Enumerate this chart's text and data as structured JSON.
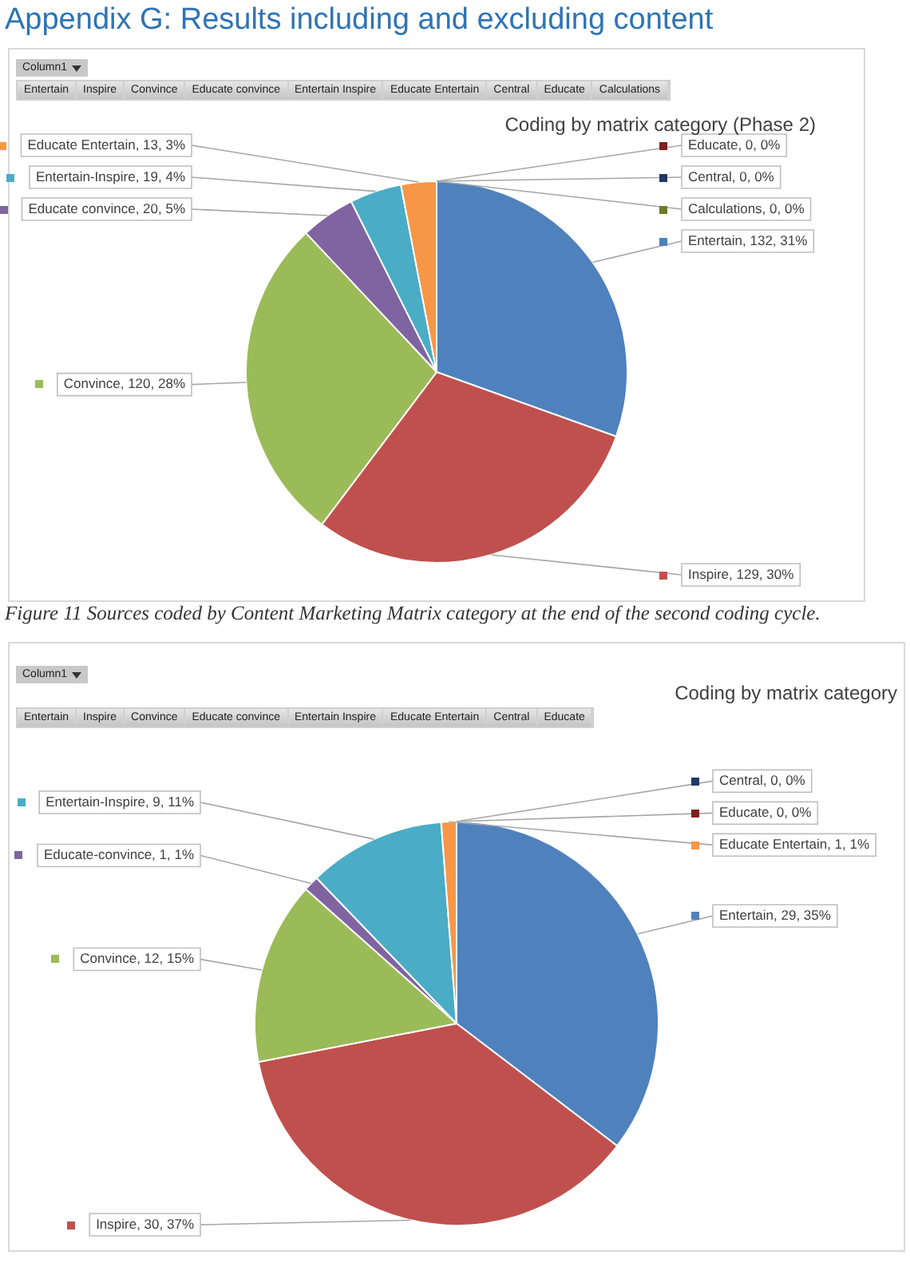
{
  "chart_data": [
    {
      "type": "pie",
      "title": "Coding by matrix category (Phase 2)",
      "categories": [
        "Entertain",
        "Inspire",
        "Convince",
        "Educate convince",
        "Entertain-Inspire",
        "Educate Entertain",
        "Educate",
        "Central",
        "Calculations"
      ],
      "values": [
        132,
        129,
        120,
        20,
        19,
        13,
        0,
        0,
        0
      ],
      "value_labels": [
        ", 132, 31%",
        ", 129, 30%",
        ", 120, 28%",
        ", 20, 5%",
        ", 19, 4%",
        ", 13, 3%",
        ", 0, 0%",
        ", 0, 0%",
        ", 0, 0%"
      ],
      "colors": [
        "#4f81bd",
        "#c0504d",
        "#9bbb59",
        "#8064a2",
        "#4bacc6",
        "#f79646",
        "#7f1f1f",
        "#1f3864",
        "#6f7a2a"
      ],
      "legend": true,
      "annotations": [
        "Appendix G: Results including and excluding content",
        "Column1",
        "Entertain",
        "Inspire",
        "Convince",
        "Educate convince",
        "Entertain Inspire",
        "Educate Entertain",
        "Central",
        "Educate",
        "Calculations",
        "Figure 11 Sources coded by Content Marketing Matrix category at the end of the second coding cycle."
      ]
    },
    {
      "type": "pie",
      "title": "Coding by matrix category",
      "categories": [
        "Entertain",
        "Inspire",
        "Convince",
        "Educate-convince",
        "Entertain-Inspire",
        "Educate Entertain",
        "Central",
        "Educate"
      ],
      "values": [
        29,
        30,
        12,
        1,
        9,
        1,
        0,
        0
      ],
      "value_labels": [
        ", 29, 35%",
        ", 30, 37%",
        ", 12, 15%",
        ", 1, 1%",
        ", 9, 11%",
        ", 1, 1%",
        ", 0, 0%",
        ", 0, 0%"
      ],
      "colors": [
        "#4f81bd",
        "#c0504d",
        "#9bbb59",
        "#8064a2",
        "#4bacc6",
        "#f79646",
        "#1f3864",
        "#7f1f1f"
      ],
      "legend": true,
      "annotations": [
        "Column1",
        "Entertain",
        "Inspire",
        "Convince",
        "Educate convince",
        "Entertain Inspire",
        "Educate Entertain",
        "Central",
        "Educate"
      ]
    }
  ]
}
